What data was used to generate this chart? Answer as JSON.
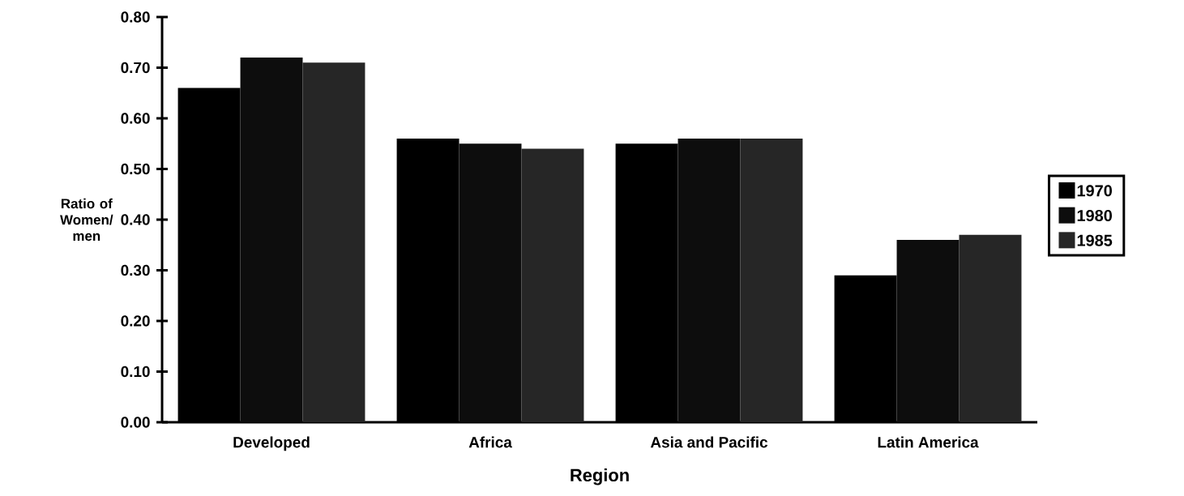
{
  "chart_data": {
    "type": "bar",
    "categories": [
      "Developed",
      "Africa",
      "Asia and Pacific",
      "Latin America"
    ],
    "series": [
      {
        "name": "1970",
        "color": "#000000",
        "values": [
          0.66,
          0.56,
          0.55,
          0.29
        ]
      },
      {
        "name": "1980",
        "color": "#0d0d0d",
        "values": [
          0.72,
          0.55,
          0.56,
          0.36
        ]
      },
      {
        "name": "1985",
        "color": "#262626",
        "values": [
          0.71,
          0.54,
          0.56,
          0.37
        ]
      }
    ],
    "xlabel": "Region",
    "ylabel": "Ratio of Women/ men",
    "ylim": [
      0,
      0.8
    ],
    "yticks": [
      {
        "value": 0,
        "label": "0.00"
      },
      {
        "value": 0.1,
        "label": "0.10"
      },
      {
        "value": 0.2,
        "label": "0.20"
      },
      {
        "value": 0.3,
        "label": "0.30"
      },
      {
        "value": 0.4,
        "label": "0.40"
      },
      {
        "value": 0.5,
        "label": "0.50"
      },
      {
        "value": 0.6,
        "label": "0.60"
      },
      {
        "value": 0.7,
        "label": "0.70"
      },
      {
        "value": 0.8,
        "label": "0.80"
      }
    ],
    "grid": false,
    "legend": "right"
  }
}
